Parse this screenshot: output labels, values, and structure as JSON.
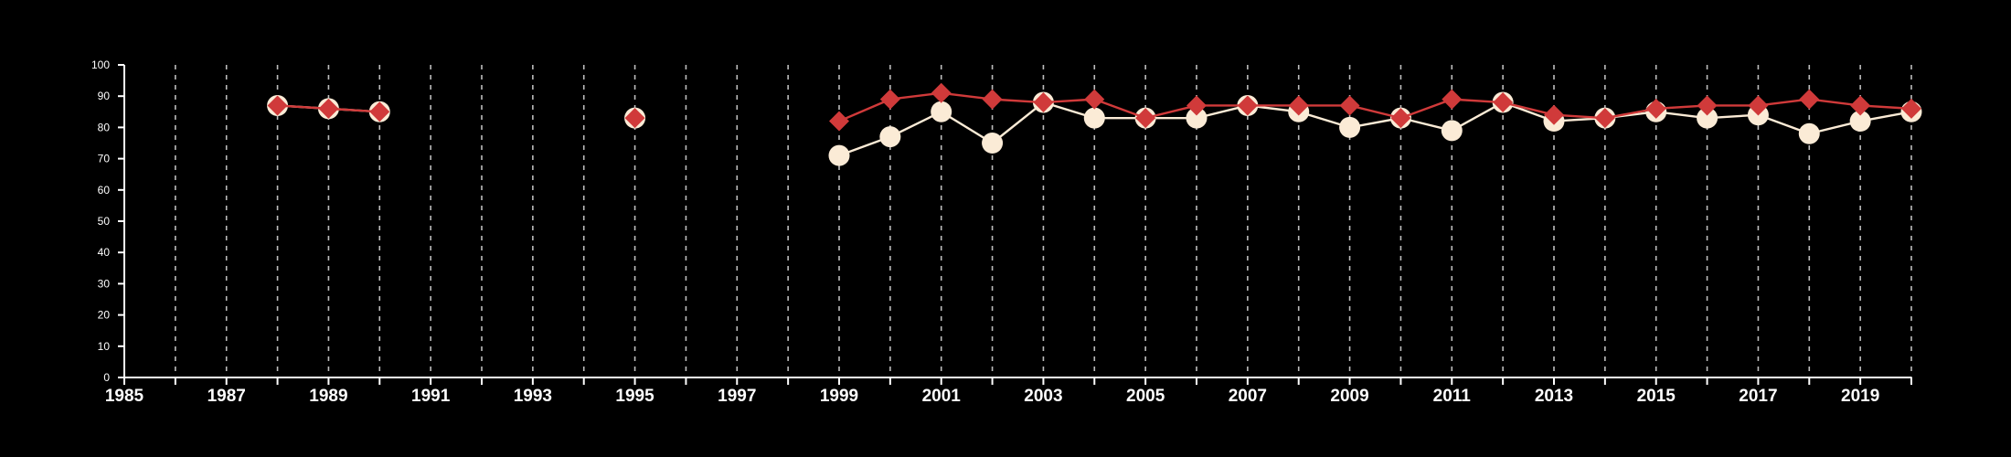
{
  "chart_data": {
    "type": "line",
    "title": "",
    "xlabel": "",
    "ylabel": "",
    "xlim": [
      1985,
      2020
    ],
    "ylim": [
      0,
      100
    ],
    "x_ticks": [
      1985,
      1987,
      1989,
      1991,
      1993,
      1995,
      1997,
      1999,
      2001,
      2003,
      2005,
      2007,
      2009,
      2011,
      2013,
      2015,
      2017,
      2019
    ],
    "y_ticks": [
      0,
      10,
      20,
      30,
      40,
      50,
      60,
      70,
      80,
      90,
      100
    ],
    "grid": "vertical dashed, every year",
    "legend": "none",
    "series": [
      {
        "color": "#fbebd6",
        "marker": "circle",
        "points": [
          [
            1988,
            87
          ],
          [
            1989,
            86
          ],
          [
            1990,
            85
          ],
          [
            1995,
            83
          ],
          [
            1999,
            71
          ],
          [
            2000,
            77
          ],
          [
            2001,
            85
          ],
          [
            2002,
            75
          ],
          [
            2003,
            88
          ],
          [
            2004,
            83
          ],
          [
            2005,
            83
          ],
          [
            2006,
            83
          ],
          [
            2007,
            87
          ],
          [
            2008,
            85
          ],
          [
            2009,
            80
          ],
          [
            2010,
            83
          ],
          [
            2011,
            79
          ],
          [
            2012,
            88
          ],
          [
            2013,
            82
          ],
          [
            2014,
            83
          ],
          [
            2015,
            85
          ],
          [
            2016,
            83
          ],
          [
            2017,
            84
          ],
          [
            2018,
            78
          ],
          [
            2019,
            82
          ],
          [
            2020,
            85
          ]
        ]
      },
      {
        "color": "#d03a3a",
        "marker": "diamond",
        "points": [
          [
            1988,
            87
          ],
          [
            1989,
            86
          ],
          [
            1990,
            85
          ],
          [
            1995,
            83
          ],
          [
            1999,
            82
          ],
          [
            2000,
            89
          ],
          [
            2001,
            91
          ],
          [
            2002,
            89
          ],
          [
            2003,
            88
          ],
          [
            2004,
            89
          ],
          [
            2005,
            83
          ],
          [
            2006,
            87
          ],
          [
            2007,
            87
          ],
          [
            2008,
            87
          ],
          [
            2009,
            87
          ],
          [
            2010,
            83
          ],
          [
            2011,
            89
          ],
          [
            2012,
            88
          ],
          [
            2013,
            84
          ],
          [
            2014,
            83
          ],
          [
            2015,
            86
          ],
          [
            2016,
            87
          ],
          [
            2017,
            87
          ],
          [
            2018,
            89
          ],
          [
            2019,
            87
          ],
          [
            2020,
            86
          ]
        ]
      }
    ]
  }
}
